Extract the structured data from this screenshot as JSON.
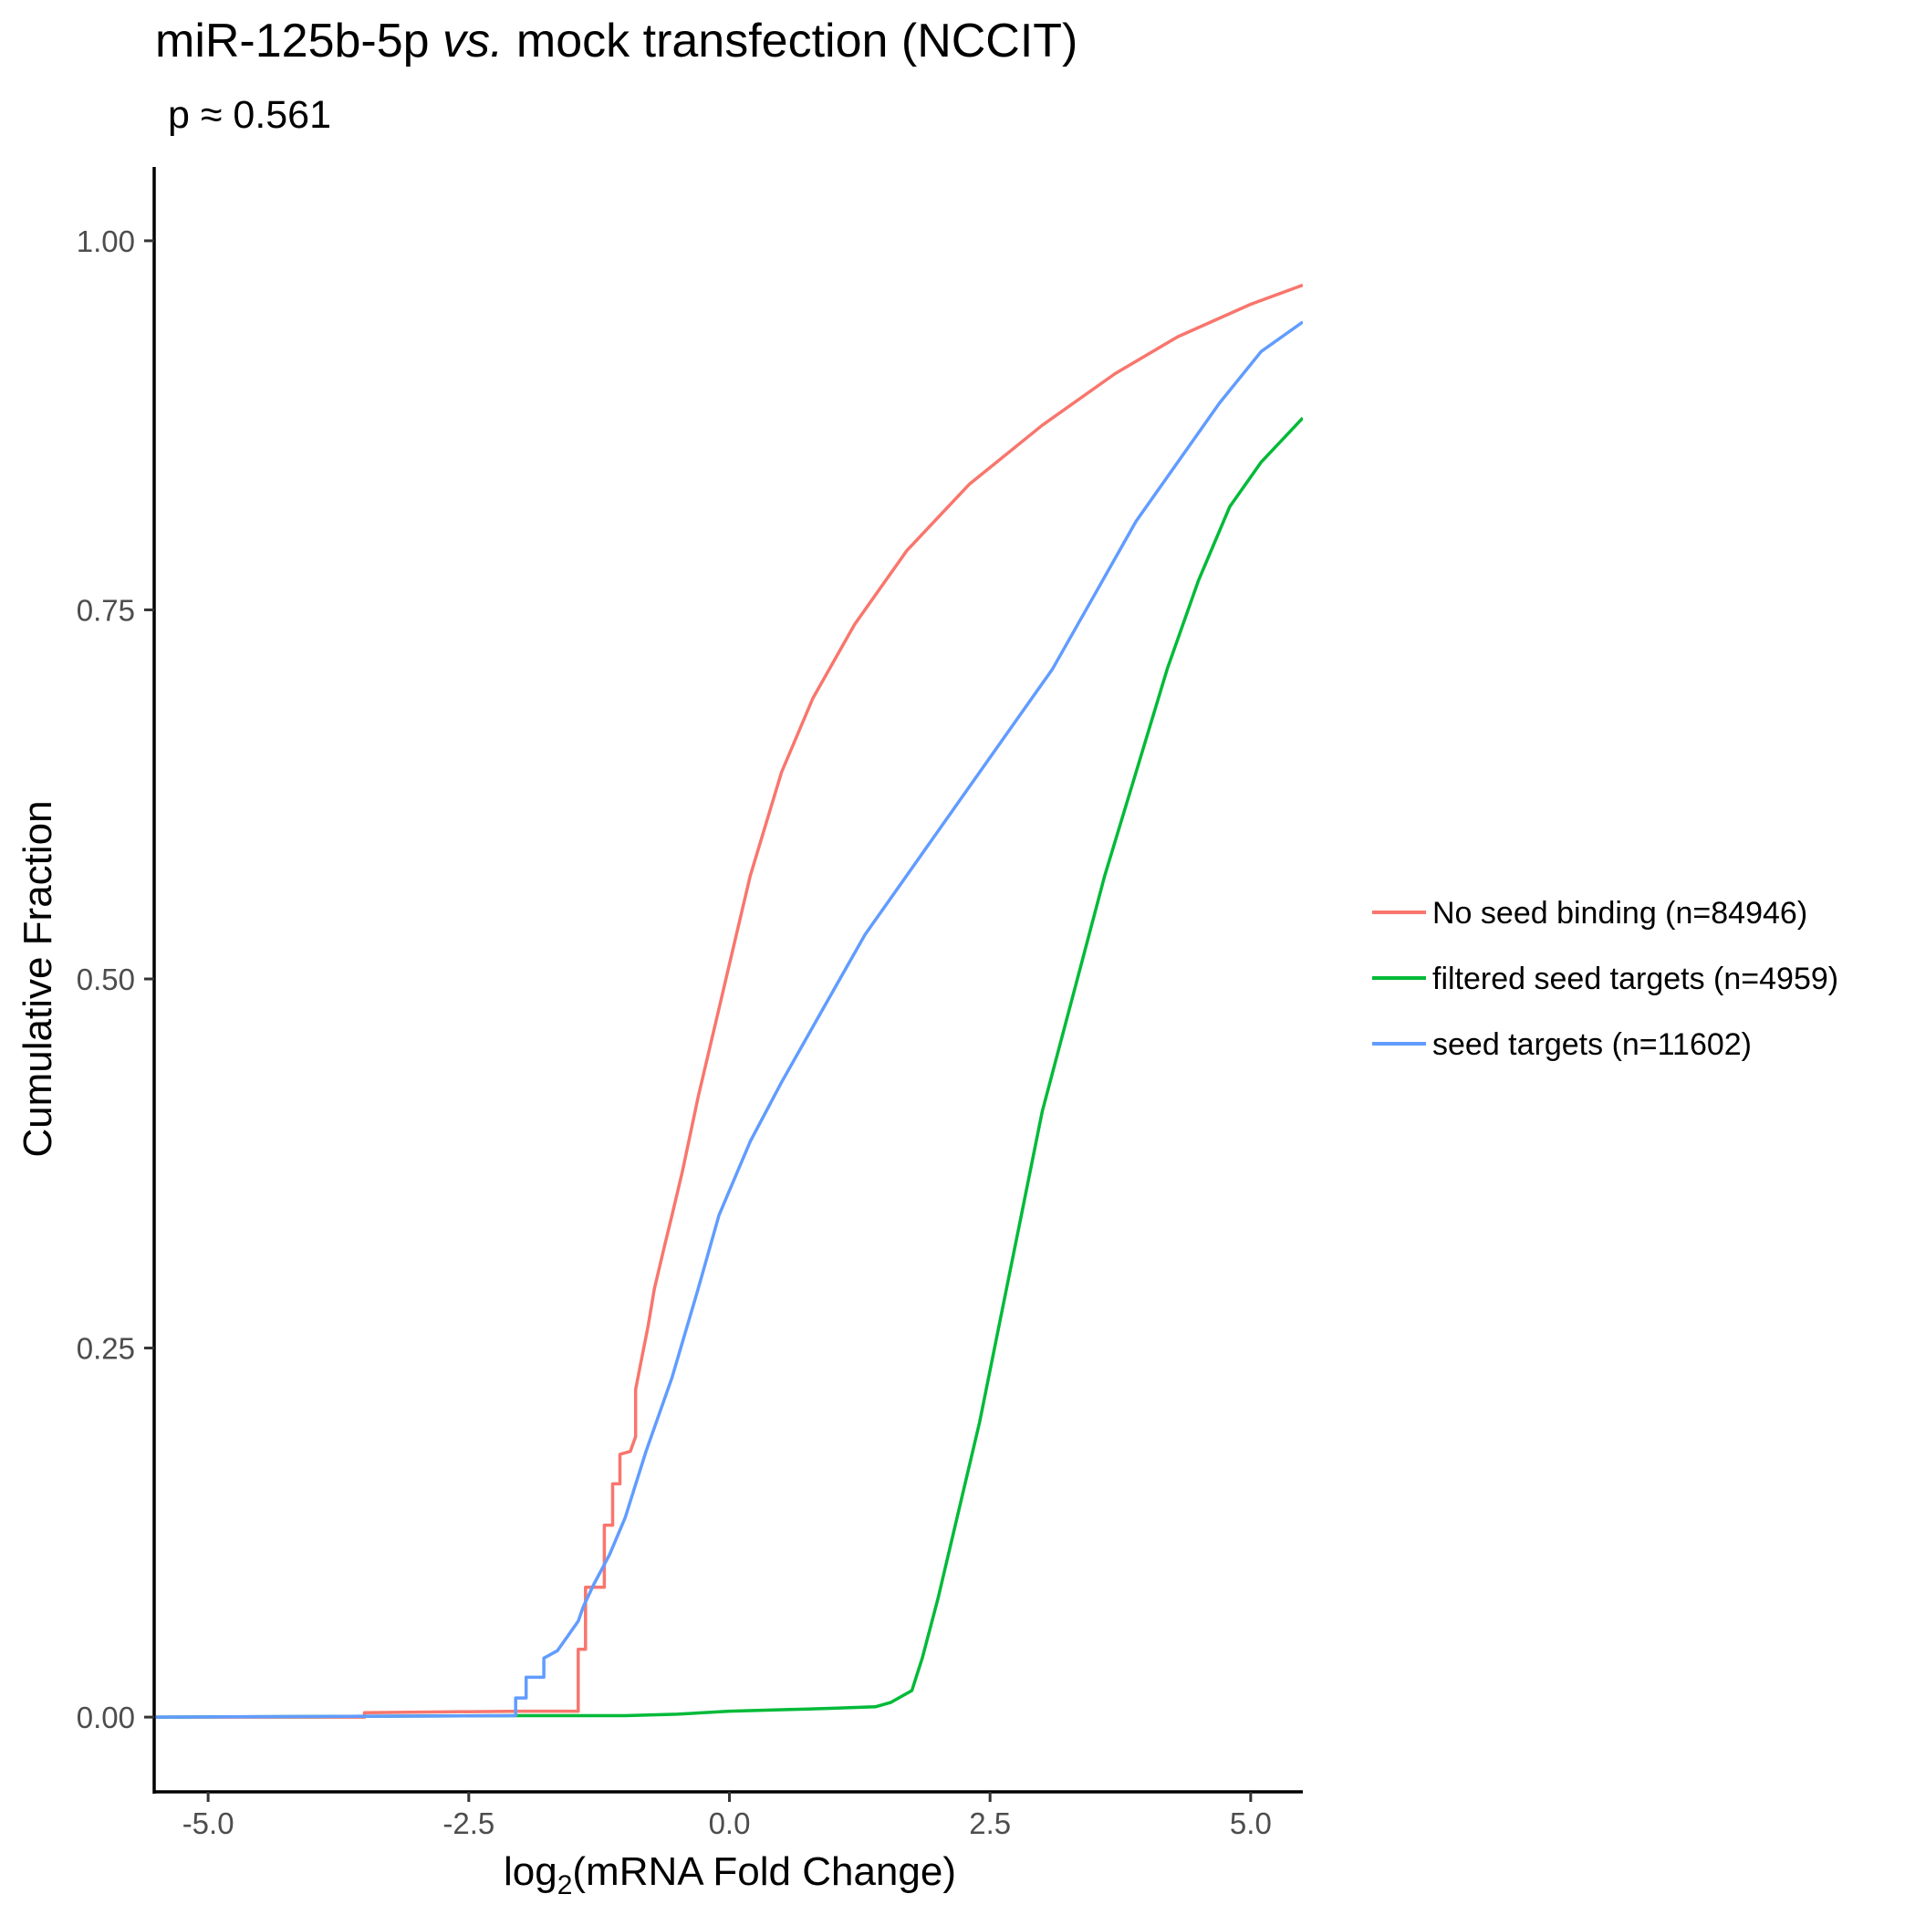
{
  "chart_data": {
    "type": "line",
    "subtype": "empirical-cumulative-distribution",
    "title": {
      "prefix": "miR-125b-5p ",
      "italic": "vs.",
      "suffix": " mock transfection (NCCIT)"
    },
    "subtitle": "p ≈ 0.561",
    "xlabel": {
      "prefix": "log",
      "subscript": "2",
      "suffix": "(mRNA Fold Change)"
    },
    "ylabel": "Cumulative Fraction",
    "xlim": [
      -5.5,
      5.5
    ],
    "ylim": [
      -0.05,
      1.05
    ],
    "x_ticks": [
      -5.0,
      -2.5,
      0.0,
      2.5,
      5.0
    ],
    "x_tick_labels": [
      "-5.0",
      "-2.5",
      "0.0",
      "2.5",
      "5.0"
    ],
    "y_ticks": [
      0.0,
      0.25,
      0.5,
      0.75,
      1.0
    ],
    "y_tick_labels": [
      "0.00",
      "0.25",
      "0.50",
      "0.75",
      "1.00"
    ],
    "grid": false,
    "legend_position": "right",
    "series": [
      {
        "name": "No seed binding (n=84946)",
        "color": "#F8766D",
        "points": [
          [
            -5.5,
            0.0
          ],
          [
            -3.5,
            0.0
          ],
          [
            -3.5,
            0.003
          ],
          [
            -2.0,
            0.004
          ],
          [
            -1.45,
            0.004
          ],
          [
            -1.45,
            0.046
          ],
          [
            -1.38,
            0.046
          ],
          [
            -1.38,
            0.088
          ],
          [
            -1.2,
            0.088
          ],
          [
            -1.2,
            0.13
          ],
          [
            -1.12,
            0.13
          ],
          [
            -1.12,
            0.158
          ],
          [
            -1.05,
            0.158
          ],
          [
            -1.05,
            0.178
          ],
          [
            -0.95,
            0.18
          ],
          [
            -0.9,
            0.19
          ],
          [
            -0.9,
            0.222
          ],
          [
            -0.85,
            0.24
          ],
          [
            -0.78,
            0.265
          ],
          [
            -0.72,
            0.29
          ],
          [
            -0.62,
            0.32
          ],
          [
            -0.55,
            0.34
          ],
          [
            -0.45,
            0.37
          ],
          [
            -0.3,
            0.42
          ],
          [
            -0.1,
            0.48
          ],
          [
            0.0,
            0.51
          ],
          [
            0.2,
            0.57
          ],
          [
            0.5,
            0.64
          ],
          [
            0.8,
            0.69
          ],
          [
            1.2,
            0.74
          ],
          [
            1.7,
            0.79
          ],
          [
            2.3,
            0.835
          ],
          [
            3.0,
            0.875
          ],
          [
            3.7,
            0.91
          ],
          [
            4.3,
            0.935
          ],
          [
            5.0,
            0.957
          ],
          [
            5.5,
            0.97
          ]
        ]
      },
      {
        "name": "filtered seed targets (n=4959)",
        "color": "#00BA38",
        "points": [
          [
            -5.5,
            0.0
          ],
          [
            -2.0,
            0.001
          ],
          [
            -1.0,
            0.001
          ],
          [
            -0.5,
            0.002
          ],
          [
            0.0,
            0.004
          ],
          [
            0.5,
            0.005
          ],
          [
            1.0,
            0.006
          ],
          [
            1.4,
            0.007
          ],
          [
            1.55,
            0.01
          ],
          [
            1.75,
            0.018
          ],
          [
            1.85,
            0.04
          ],
          [
            2.0,
            0.08
          ],
          [
            2.2,
            0.14
          ],
          [
            2.4,
            0.2
          ],
          [
            2.6,
            0.27
          ],
          [
            2.8,
            0.34
          ],
          [
            3.0,
            0.41
          ],
          [
            3.3,
            0.49
          ],
          [
            3.6,
            0.57
          ],
          [
            3.9,
            0.64
          ],
          [
            4.2,
            0.71
          ],
          [
            4.5,
            0.77
          ],
          [
            4.8,
            0.82
          ],
          [
            5.1,
            0.85
          ],
          [
            5.5,
            0.88
          ]
        ]
      },
      {
        "name": "seed targets (n=11602)",
        "color": "#619CFF",
        "points": [
          [
            -5.5,
            0.0
          ],
          [
            -2.05,
            0.001
          ],
          [
            -2.05,
            0.013
          ],
          [
            -1.95,
            0.013
          ],
          [
            -1.95,
            0.027
          ],
          [
            -1.78,
            0.027
          ],
          [
            -1.78,
            0.04
          ],
          [
            -1.65,
            0.045
          ],
          [
            -1.55,
            0.055
          ],
          [
            -1.45,
            0.065
          ],
          [
            -1.4,
            0.075
          ],
          [
            -1.3,
            0.09
          ],
          [
            -1.15,
            0.11
          ],
          [
            -1.0,
            0.135
          ],
          [
            -0.8,
            0.18
          ],
          [
            -0.55,
            0.23
          ],
          [
            -0.3,
            0.29
          ],
          [
            -0.1,
            0.34
          ],
          [
            0.2,
            0.39
          ],
          [
            0.5,
            0.43
          ],
          [
            0.9,
            0.48
          ],
          [
            1.3,
            0.53
          ],
          [
            1.7,
            0.57
          ],
          [
            2.2,
            0.62
          ],
          [
            2.7,
            0.67
          ],
          [
            3.1,
            0.71
          ],
          [
            3.5,
            0.76
          ],
          [
            3.9,
            0.81
          ],
          [
            4.3,
            0.85
          ],
          [
            4.7,
            0.89
          ],
          [
            5.1,
            0.925
          ],
          [
            5.5,
            0.945
          ]
        ]
      }
    ]
  }
}
